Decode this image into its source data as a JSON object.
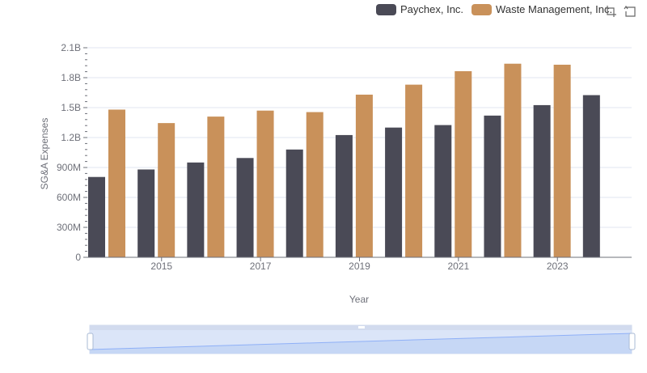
{
  "chart_data": {
    "type": "bar",
    "title": "",
    "xlabel": "Year",
    "ylabel": "SG&A Expenses",
    "categories": [
      "2014",
      "2015",
      "2016",
      "2017",
      "2018",
      "2019",
      "2020",
      "2021",
      "2022",
      "2023",
      "2024"
    ],
    "x_tick_labels": [
      "2015",
      "2017",
      "2019",
      "2021",
      "2023"
    ],
    "y_tick_labels": [
      "0",
      "300M",
      "600M",
      "900M",
      "1.2B",
      "1.5B",
      "1.8B",
      "2.1B"
    ],
    "ylim": [
      0,
      2100000000
    ],
    "series": [
      {
        "name": "Paychex, Inc.",
        "color": "#4a4a56",
        "values": [
          805000000,
          880000000,
          950000000,
          995000000,
          1080000000,
          1225000000,
          1300000000,
          1325000000,
          1420000000,
          1525000000,
          1625000000
        ]
      },
      {
        "name": "Waste Management, Inc.",
        "color": "#c9915a",
        "values": [
          1480000000,
          1345000000,
          1410000000,
          1470000000,
          1455000000,
          1630000000,
          1730000000,
          1865000000,
          1940000000,
          1930000000,
          null
        ]
      }
    ],
    "legend_position": "top-right",
    "grid": true
  },
  "legend": {
    "items": [
      {
        "label": "Paychex, Inc.",
        "color": "#4a4a56"
      },
      {
        "label": "Waste Management, Inc.",
        "color": "#c9915a"
      }
    ]
  },
  "toolbox": {
    "zoom_icon": "zoom-icon",
    "restore_icon": "restore-icon"
  },
  "datazoom": {
    "start_percent": 0,
    "end_percent": 100
  }
}
